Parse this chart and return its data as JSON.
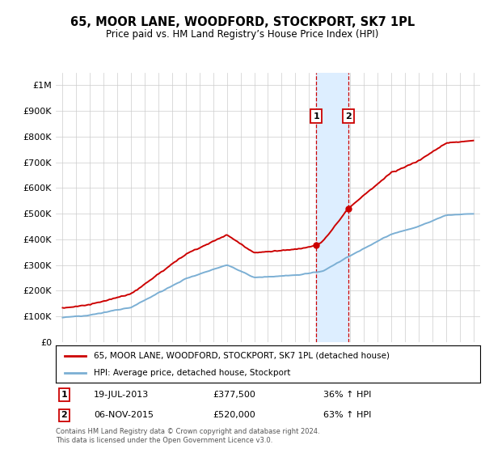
{
  "title": "65, MOOR LANE, WOODFORD, STOCKPORT, SK7 1PL",
  "subtitle": "Price paid vs. HM Land Registry’s House Price Index (HPI)",
  "legend_line1": "65, MOOR LANE, WOODFORD, STOCKPORT, SK7 1PL (detached house)",
  "legend_line2": "HPI: Average price, detached house, Stockport",
  "transaction1_date": "19-JUL-2013",
  "transaction1_price": 377500,
  "transaction1_pct": "36% ↑ HPI",
  "transaction2_date": "06-NOV-2015",
  "transaction2_price": 520000,
  "transaction2_pct": "63% ↑ HPI",
  "footnote": "Contains HM Land Registry data © Crown copyright and database right 2024.\nThis data is licensed under the Open Government Licence v3.0.",
  "red_color": "#cc0000",
  "blue_color": "#7bafd4",
  "highlight_color": "#ddeeff",
  "ylim_min": 0,
  "ylim_max": 1050000,
  "x_start_year": 1995,
  "x_end_year": 2025,
  "transaction1_x": 2013.54,
  "transaction2_x": 2015.85
}
